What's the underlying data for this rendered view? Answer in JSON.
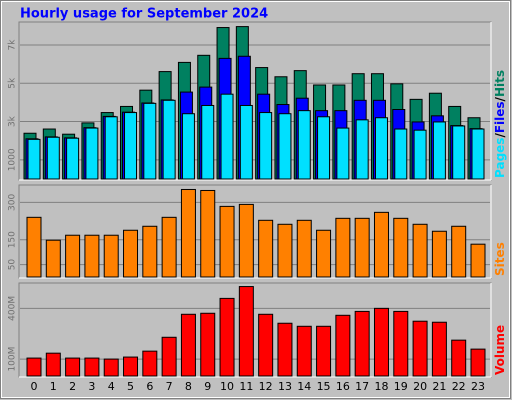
{
  "title": "Hourly usage for September 2024",
  "chart_data": [
    {
      "type": "bar",
      "legend_separator": "/",
      "series": [
        {
          "name": "Pages",
          "color": "#00e0ff",
          "values": [
            2070,
            2180,
            2130,
            2660,
            3250,
            3470,
            3950,
            4110,
            3410,
            3840,
            4430,
            3840,
            3470,
            3410,
            3570,
            3250,
            2660,
            3090,
            3200,
            2610,
            2550,
            2980,
            2770,
            2610
          ]
        },
        {
          "name": "Files",
          "color": "#0000ff",
          "values": [
            2100,
            2200,
            2150,
            2680,
            3270,
            3490,
            3970,
            4130,
            4540,
            4800,
            6300,
            6410,
            4430,
            3890,
            4220,
            3570,
            3570,
            4110,
            4110,
            3630,
            2980,
            3300,
            2790,
            2630
          ]
        },
        {
          "name": "Hits",
          "color": "#008060",
          "values": [
            2390,
            2610,
            2340,
            2930,
            3470,
            3790,
            4640,
            5610,
            6090,
            6460,
            7910,
            7960,
            5820,
            5340,
            5660,
            4910,
            4910,
            5500,
            5500,
            4970,
            4160,
            4480,
            3790,
            3200
          ]
        }
      ],
      "ylim": [
        0,
        8200
      ],
      "yticks": [
        1000,
        {
          "value": 3000,
          "label": "3k"
        },
        {
          "value": 5000,
          "label": "5k"
        },
        {
          "value": 7000,
          "label": "7k"
        }
      ],
      "grid": true
    },
    {
      "type": "bar",
      "series": [
        {
          "name": "Sites",
          "color": "#ff8000",
          "values": [
            240,
            148,
            168,
            168,
            168,
            188,
            204,
            240,
            352,
            348,
            284,
            292,
            228,
            212,
            228,
            188,
            236,
            236,
            260,
            236,
            212,
            184,
            204,
            132
          ]
        }
      ],
      "ylim": [
        0,
        370
      ],
      "yticks": [
        50,
        150,
        300
      ],
      "grid": true
    },
    {
      "type": "bar",
      "categories": [
        "0",
        "1",
        "2",
        "3",
        "4",
        "5",
        "6",
        "7",
        "8",
        "9",
        "10",
        "11",
        "12",
        "13",
        "14",
        "15",
        "16",
        "17",
        "18",
        "19",
        "20",
        "21",
        "22",
        "23"
      ],
      "series": [
        {
          "name": "Volume",
          "color": "#ff0000",
          "values": [
            106,
            135,
            106,
            106,
            100,
            112,
            147,
            229,
            365,
            371,
            459,
            529,
            365,
            312,
            294,
            294,
            359,
            382,
            400,
            382,
            324,
            318,
            212,
            159
          ]
        }
      ],
      "ylim": [
        0,
        550
      ],
      "yticks": [
        {
          "value": 100,
          "label": "100M"
        },
        {
          "value": 400,
          "label": "400M"
        }
      ],
      "grid": true
    }
  ]
}
